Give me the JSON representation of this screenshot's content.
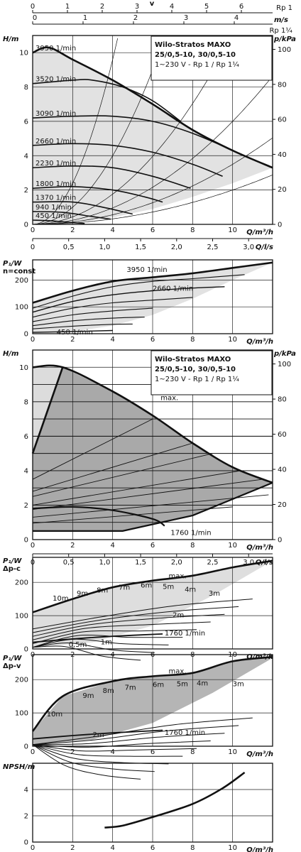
{
  "chart_data": [
    {
      "id": "velocity_scale",
      "type": "axis",
      "title": "v",
      "unit": "m/s",
      "rp1": {
        "label": "Rp 1",
        "ticks": [
          "0",
          "1",
          "2",
          "3",
          "4",
          "5",
          "6"
        ]
      },
      "rp114": {
        "label": "Rp 1¼",
        "ticks": [
          "0",
          "1",
          "2",
          "3",
          "4"
        ]
      }
    },
    {
      "id": "head_curves",
      "type": "line",
      "title": "Wilo-Stratos MAXO",
      "subtitle": "25/0,5-10, 30/0,5-10",
      "note": "1~230 V - Rp 1 / Rp 1¼",
      "ylabel": "H/m",
      "ylabel_right": "p/kPa",
      "xlabel": "Q/m³/h",
      "xlim": [
        0,
        12
      ],
      "ylim": [
        0,
        11
      ],
      "x_ticks": [
        "0",
        "2",
        "4",
        "6",
        "8",
        "10"
      ],
      "y_ticks": [
        "0",
        "2",
        "4",
        "6",
        "8",
        "10"
      ],
      "y_right_ticks": [
        "0",
        "20",
        "40",
        "60",
        "80",
        "100"
      ],
      "series": [
        {
          "name": "3950 1/min",
          "x": [
            0,
            0.8,
            2,
            4,
            6,
            8,
            10,
            12
          ],
          "y": [
            10.0,
            10.3,
            9.6,
            8.4,
            7.0,
            5.5,
            4.3,
            3.3
          ]
        },
        {
          "name": "3520 1/min",
          "x": [
            0,
            2,
            3,
            4.5,
            6,
            7.4
          ],
          "y": [
            8.2,
            8.4,
            8.4,
            8.0,
            7.2,
            6.0
          ]
        },
        {
          "name": "3090 1/min",
          "x": [
            0,
            2,
            4,
            6,
            8,
            10.6
          ],
          "y": [
            6.2,
            6.3,
            6.3,
            6.0,
            5.3,
            4.0
          ]
        },
        {
          "name": "2660 1/min",
          "x": [
            0,
            2,
            4,
            6,
            8,
            9.5
          ],
          "y": [
            4.6,
            4.7,
            4.6,
            4.2,
            3.5,
            2.8
          ]
        },
        {
          "name": "2230 1/min",
          "x": [
            0,
            2,
            4,
            6,
            7.9
          ],
          "y": [
            3.3,
            3.4,
            3.3,
            2.8,
            2.1
          ]
        },
        {
          "name": "1800 1/min",
          "x": [
            0,
            2,
            4,
            5.6,
            6.5
          ],
          "y": [
            2.1,
            2.2,
            2.0,
            1.6,
            1.3
          ]
        },
        {
          "name": "1370 1/min",
          "x": [
            0,
            2,
            3.5,
            5.0
          ],
          "y": [
            1.3,
            1.3,
            1.0,
            0.6
          ]
        },
        {
          "name": "940 1/min",
          "x": [
            0,
            1.5,
            3.0,
            3.9
          ],
          "y": [
            0.75,
            0.7,
            0.45,
            0.3
          ]
        },
        {
          "name": "450 1/min",
          "x": [
            0,
            1.0,
            2.0,
            2.6
          ],
          "y": [
            0.25,
            0.2,
            0.1,
            0.05
          ]
        }
      ]
    },
    {
      "id": "flow_scale_1",
      "type": "axis",
      "label": "Q/l/s",
      "ticks": [
        "0",
        "0,5",
        "1,0",
        "1,5",
        "2,0",
        "2,5",
        "3,0"
      ]
    },
    {
      "id": "power_const",
      "type": "line",
      "ylabel": "P₁/W",
      "ylabel_sub": "n=const",
      "xlabel": "Q/m³/h",
      "xlim": [
        0,
        12
      ],
      "ylim": [
        0,
        275
      ],
      "x_ticks": [
        "0",
        "2",
        "4",
        "6",
        "8",
        "10"
      ],
      "y_ticks": [
        "0",
        "100",
        "200"
      ],
      "series": [
        {
          "name": "3950 1/min",
          "x": [
            0,
            2,
            4,
            6,
            8,
            10,
            12
          ],
          "y": [
            115,
            160,
            195,
            210,
            225,
            245,
            265
          ]
        },
        {
          "name": "2660 1/min",
          "x": [
            0,
            2,
            4,
            6,
            8,
            9.6
          ],
          "y": [
            80,
            120,
            145,
            160,
            170,
            175
          ]
        },
        {
          "name": "450 1/min",
          "x": [
            0,
            2,
            4.0
          ],
          "y": [
            5,
            8,
            12
          ]
        }
      ]
    },
    {
      "id": "head_control",
      "type": "area",
      "title": "Wilo-Stratos MAXO",
      "subtitle": "25/0,5-10, 30/0,5-10",
      "note": "1~230 V - Rp 1 / Rp 1¼",
      "ylabel": "H/m",
      "ylabel_right": "p/kPa",
      "xlabel": "Q/m³/h",
      "xlim": [
        0,
        12
      ],
      "ylim": [
        0,
        11
      ],
      "x_ticks": [
        "0",
        "2",
        "4",
        "6",
        "8",
        "10"
      ],
      "y_ticks": [
        "0",
        "2",
        "4",
        "6",
        "8",
        "10"
      ],
      "y_right_ticks": [
        "0",
        "20",
        "40",
        "60",
        "80",
        "100"
      ],
      "series": [
        {
          "name": "max.",
          "x": [
            0,
            1.5,
            4,
            6,
            8,
            10,
            12
          ],
          "y": [
            10.0,
            10.0,
            8.6,
            7.2,
            5.6,
            4.2,
            3.3
          ]
        },
        {
          "name": "1760 1/min",
          "x": [
            0,
            2,
            4,
            6,
            6.6
          ],
          "y": [
            1.8,
            1.9,
            1.7,
            1.2,
            0.8
          ]
        }
      ]
    },
    {
      "id": "flow_scale_2",
      "type": "axis",
      "label": "Q/l/s",
      "ticks": [
        "0",
        "0,5",
        "1,0",
        "1,5",
        "2,0",
        "2,5",
        "3,0"
      ]
    },
    {
      "id": "power_dpc",
      "type": "line",
      "ylabel": "P₁/W",
      "ylabel_sub": "Δp-c",
      "xlabel": "Q/m³/h",
      "xlim": [
        0,
        12
      ],
      "ylim": [
        0,
        275
      ],
      "x_ticks": [
        "0",
        "2",
        "4",
        "6",
        "8",
        "10"
      ],
      "y_ticks": [
        "0",
        "100",
        "200"
      ],
      "curve_labels": [
        "max.",
        "10m",
        "9m",
        "8m",
        "7m",
        "6m",
        "5m",
        "4m",
        "3m",
        "2m",
        "1760 1/min",
        "0,5m",
        "1m"
      ],
      "series": [
        {
          "name": "max.",
          "x": [
            0,
            2,
            4,
            6,
            8,
            10,
            12
          ],
          "y": [
            110,
            150,
            185,
            205,
            220,
            245,
            265
          ]
        },
        {
          "name": "1760 1/min",
          "x": [
            0,
            2,
            4,
            6.5
          ],
          "y": [
            20,
            30,
            38,
            45
          ]
        }
      ]
    },
    {
      "id": "power_dpv",
      "type": "line",
      "ylabel": "P₁/W",
      "ylabel_sub": "Δp-v",
      "xlabel": "Q/m³/h",
      "xlim": [
        0,
        12
      ],
      "ylim": [
        0,
        275
      ],
      "x_ticks": [
        "0",
        "2",
        "4",
        "6",
        "8",
        "10"
      ],
      "y_ticks": [
        "0",
        "100",
        "200"
      ],
      "curve_labels": [
        "max.",
        "10m",
        "9m",
        "8m",
        "7m",
        "6m",
        "5m",
        "4m",
        "3m",
        "2m",
        "1760 1/min"
      ],
      "series": [
        {
          "name": "max.",
          "x": [
            0,
            1.5,
            4,
            6,
            8,
            10,
            12
          ],
          "y": [
            45,
            150,
            195,
            210,
            220,
            255,
            268
          ]
        },
        {
          "name": "1760 1/min",
          "x": [
            0,
            2,
            4,
            6.5
          ],
          "y": [
            22,
            32,
            40,
            48
          ]
        }
      ]
    },
    {
      "id": "npsh",
      "type": "line",
      "ylabel": "NPSH/m",
      "xlabel": "Q/m³/h",
      "xlim": [
        0,
        12
      ],
      "ylim": [
        0,
        6
      ],
      "x_ticks": [
        "0",
        "2",
        "4",
        "6",
        "8",
        "10"
      ],
      "y_ticks": [
        "0",
        "2",
        "4"
      ],
      "series": [
        {
          "name": "",
          "x": [
            3.6,
            4.5,
            6,
            8,
            9.5,
            10.6
          ],
          "y": [
            1.1,
            1.25,
            1.9,
            2.9,
            4.1,
            5.3
          ]
        }
      ]
    }
  ]
}
